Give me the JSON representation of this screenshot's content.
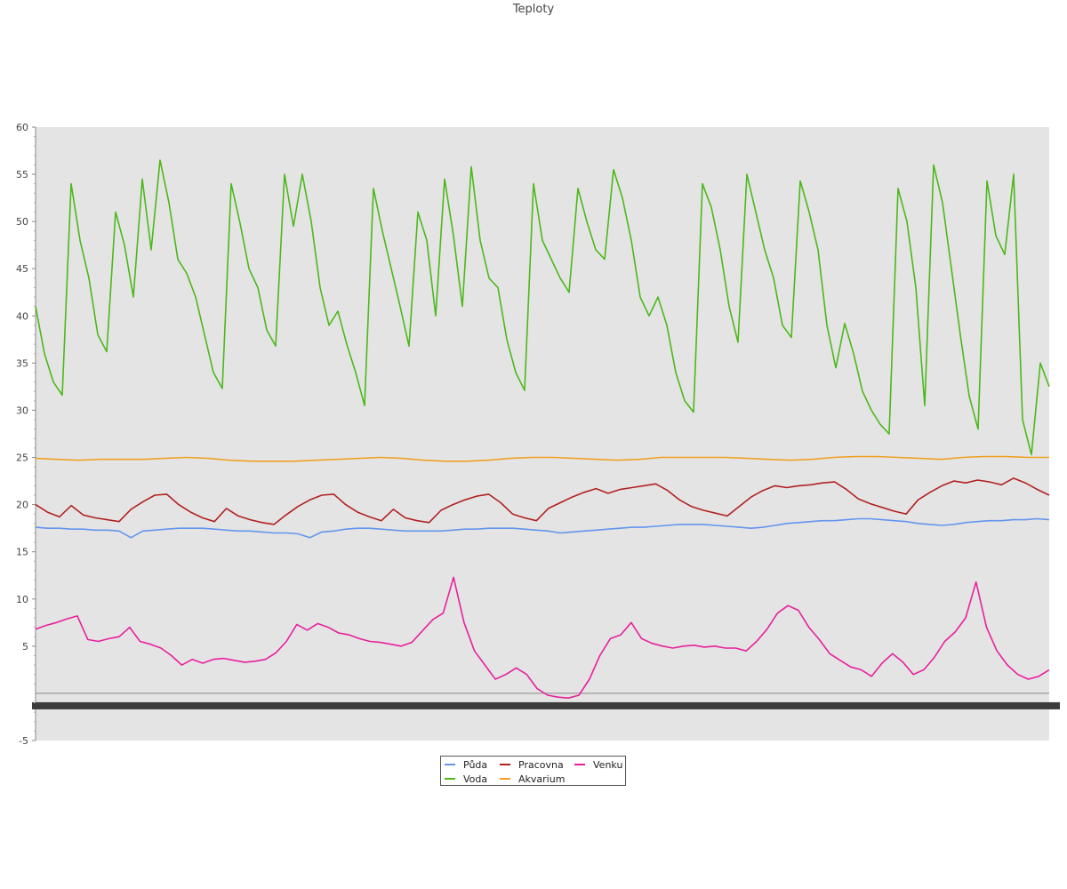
{
  "chart_data": {
    "type": "line",
    "title": "Teploty",
    "xlabel": "",
    "ylabel": "",
    "ylim": [
      -5,
      60
    ],
    "yticks": [
      -5,
      5,
      10,
      15,
      20,
      25,
      30,
      35,
      40,
      45,
      50,
      55,
      60
    ],
    "grid": false,
    "legend_position": "bottom-center",
    "series": [
      {
        "name": "Půda",
        "color": "#6495ED",
        "values": [
          17.6,
          17.5,
          17.5,
          17.4,
          17.4,
          17.3,
          17.3,
          17.2,
          16.5,
          17.2,
          17.3,
          17.4,
          17.5,
          17.5,
          17.5,
          17.4,
          17.3,
          17.2,
          17.2,
          17.1,
          17.0,
          17.0,
          16.9,
          16.5,
          17.1,
          17.2,
          17.4,
          17.5,
          17.5,
          17.4,
          17.3,
          17.2,
          17.2,
          17.2,
          17.2,
          17.3,
          17.4,
          17.4,
          17.5,
          17.5,
          17.5,
          17.4,
          17.3,
          17.2,
          17.0,
          17.1,
          17.2,
          17.3,
          17.4,
          17.5,
          17.6,
          17.6,
          17.7,
          17.8,
          17.9,
          17.9,
          17.9,
          17.8,
          17.7,
          17.6,
          17.5,
          17.6,
          17.8,
          18.0,
          18.1,
          18.2,
          18.3,
          18.3,
          18.4,
          18.5,
          18.5,
          18.4,
          18.3,
          18.2,
          18.0,
          17.9,
          17.8,
          17.9,
          18.1,
          18.2,
          18.3,
          18.3,
          18.4,
          18.4,
          18.5,
          18.4
        ]
      },
      {
        "name": "Voda",
        "color": "#4CB81A",
        "values": [
          41.0,
          36.0,
          33.0,
          31.6,
          54.0,
          48.0,
          44.0,
          38.0,
          36.2,
          51.0,
          47.5,
          42.0,
          54.5,
          47.0,
          56.5,
          52.0,
          46.0,
          44.5,
          42.0,
          38.0,
          34.0,
          32.3,
          54.0,
          49.8,
          45.0,
          43.0,
          38.5,
          36.8,
          55.0,
          49.5,
          55.0,
          50.0,
          43.0,
          39.0,
          40.5,
          37.0,
          34.0,
          30.5,
          53.5,
          49.0,
          45.0,
          41.0,
          36.8,
          51.0,
          48.0,
          40.0,
          54.5,
          48.5,
          41.0,
          55.8,
          48.0,
          44.0,
          43.0,
          37.5,
          34.0,
          32.1,
          54.0,
          48.0,
          46.0,
          44.0,
          42.5,
          53.5,
          50.0,
          47.0,
          46.0,
          55.5,
          52.5,
          48.0,
          42.0,
          40.0,
          42.0,
          39.0,
          34.0,
          31.0,
          29.8,
          54.0,
          51.5,
          47.0,
          41.0,
          37.2,
          55.0,
          51.0,
          47.0,
          44.0,
          39.0,
          37.7,
          54.3,
          51.0,
          47.0,
          39.0,
          34.5,
          39.2,
          36.0,
          32.0,
          30.0,
          28.5,
          27.5,
          53.5,
          50.0,
          43.0,
          30.5,
          56.0,
          52.0,
          45.0,
          38.0,
          31.5,
          28.0,
          54.3,
          48.5,
          46.5,
          55.0,
          29.0,
          25.3,
          35.0,
          32.5
        ]
      },
      {
        "name": "Pracovna",
        "color": "#B22222",
        "values": [
          20.0,
          19.2,
          18.7,
          19.9,
          18.9,
          18.6,
          18.4,
          18.2,
          19.5,
          20.3,
          21.0,
          21.1,
          20.0,
          19.2,
          18.6,
          18.2,
          19.6,
          18.8,
          18.4,
          18.1,
          17.9,
          18.9,
          19.8,
          20.5,
          21.0,
          21.1,
          20.0,
          19.2,
          18.7,
          18.3,
          19.5,
          18.6,
          18.3,
          18.1,
          19.4,
          20.0,
          20.5,
          20.9,
          21.1,
          20.2,
          19.0,
          18.6,
          18.3,
          19.6,
          20.2,
          20.8,
          21.3,
          21.7,
          21.2,
          21.6,
          21.8,
          22.0,
          22.2,
          21.5,
          20.5,
          19.8,
          19.4,
          19.1,
          18.8,
          19.8,
          20.8,
          21.5,
          22.0,
          21.8,
          22.0,
          22.1,
          22.3,
          22.4,
          21.6,
          20.6,
          20.1,
          19.7,
          19.3,
          19.0,
          20.5,
          21.3,
          22.0,
          22.5,
          22.3,
          22.6,
          22.4,
          22.1,
          22.8,
          22.3,
          21.6,
          21.0
        ]
      },
      {
        "name": "Akvarium",
        "color": "#F0A020",
        "values": [
          24.9,
          24.8,
          24.7,
          24.8,
          24.8,
          24.8,
          24.9,
          25.0,
          24.9,
          24.7,
          24.6,
          24.6,
          24.6,
          24.7,
          24.8,
          24.9,
          25.0,
          24.9,
          24.7,
          24.6,
          24.6,
          24.7,
          24.9,
          25.0,
          25.0,
          24.9,
          24.8,
          24.7,
          24.8,
          25.0,
          25.0,
          25.0,
          25.0,
          24.9,
          24.8,
          24.7,
          24.8,
          25.0,
          25.1,
          25.1,
          25.0,
          24.9,
          24.8,
          25.0,
          25.1,
          25.1,
          25.0,
          25.0
        ]
      },
      {
        "name": "Venku",
        "color": "#E8209C",
        "values": [
          6.8,
          7.2,
          7.5,
          7.9,
          8.2,
          5.7,
          5.5,
          5.8,
          6.0,
          7.0,
          5.5,
          5.2,
          4.8,
          4.0,
          3.0,
          3.6,
          3.2,
          3.6,
          3.7,
          3.5,
          3.3,
          3.4,
          3.6,
          4.3,
          5.5,
          7.3,
          6.7,
          7.4,
          7.0,
          6.4,
          6.2,
          5.8,
          5.5,
          5.4,
          5.2,
          5.0,
          5.4,
          6.6,
          7.8,
          8.5,
          12.3,
          7.5,
          4.5,
          3.0,
          1.5,
          2.0,
          2.7,
          2.0,
          0.5,
          -0.2,
          -0.4,
          -0.5,
          -0.2,
          1.5,
          4.0,
          5.8,
          6.2,
          7.5,
          5.8,
          5.3,
          5.0,
          4.8,
          5.0,
          5.1,
          4.9,
          5.0,
          4.8,
          4.8,
          4.5,
          5.5,
          6.8,
          8.5,
          9.3,
          8.8,
          7.0,
          5.7,
          4.2,
          3.5,
          2.8,
          2.5,
          1.8,
          3.2,
          4.2,
          3.3,
          2.0,
          2.5,
          3.8,
          5.5,
          6.5,
          8.0,
          11.8,
          7.0,
          4.5,
          3.0,
          2.0,
          1.5,
          1.8,
          2.5
        ]
      }
    ]
  }
}
